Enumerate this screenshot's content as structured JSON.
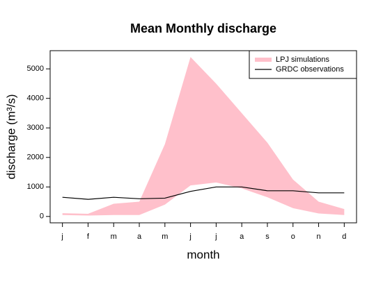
{
  "chart_data": {
    "type": "band-line",
    "title": "Mean Monthly discharge",
    "x_label": "month",
    "y_label": "discharge (m³/s)",
    "categories": [
      "j",
      "f",
      "m",
      "a",
      "m",
      "j",
      "j",
      "a",
      "s",
      "o",
      "n",
      "d"
    ],
    "series": [
      {
        "name": "LPJ simulations",
        "color": "#ffc0cb",
        "upper": [
          110,
          90,
          430,
          500,
          2450,
          5400,
          4500,
          3500,
          2500,
          1250,
          500,
          250
        ],
        "lower": [
          50,
          30,
          50,
          50,
          400,
          1050,
          1150,
          950,
          650,
          280,
          100,
          50
        ]
      },
      {
        "name": "GRDC observations",
        "color": "#000000",
        "values": [
          650,
          580,
          650,
          600,
          620,
          850,
          1000,
          1000,
          870,
          870,
          800,
          800
        ]
      }
    ],
    "ylim": [
      -216,
      5616
    ],
    "yticks": [
      0,
      1000,
      2000,
      3000,
      4000,
      5000
    ],
    "legend": "top-right"
  }
}
